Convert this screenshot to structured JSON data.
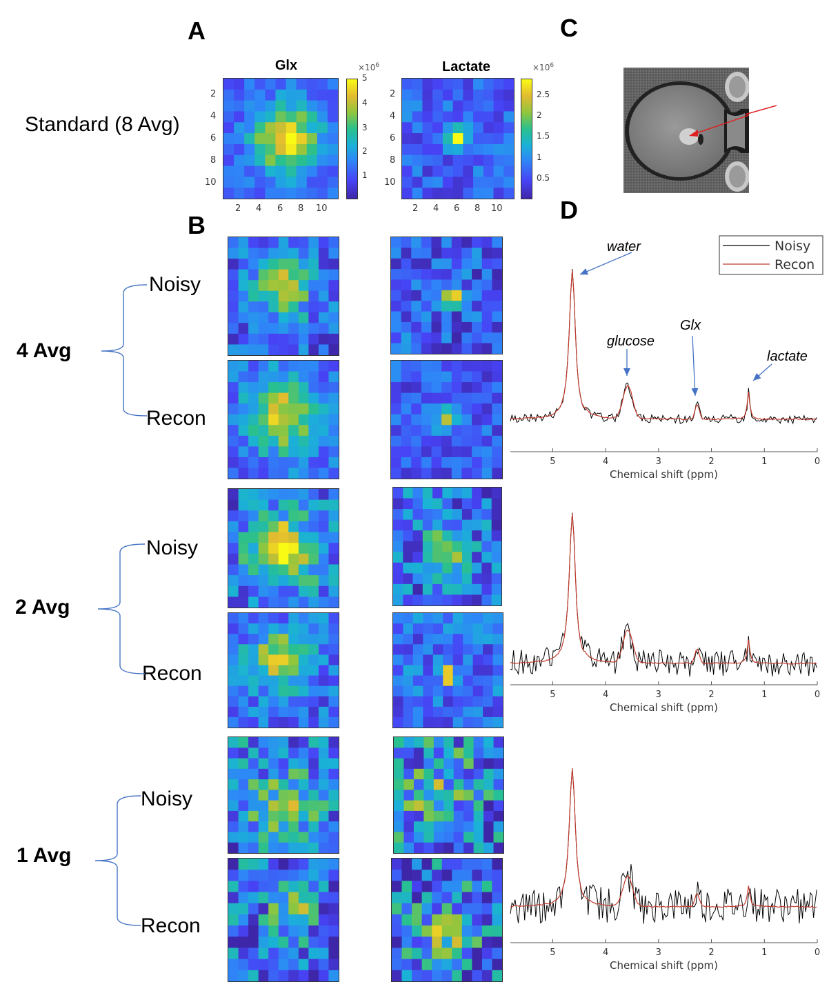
{
  "panels": {
    "A": "A",
    "B": "B",
    "C": "C",
    "D": "D"
  },
  "standard_label": "Standard (8 Avg)",
  "map_titles": {
    "glx": "Glx",
    "lactate": "Lactate"
  },
  "axis_ticks": [
    "2",
    "4",
    "6",
    "8",
    "10"
  ],
  "colorbar_glx": {
    "exponent": "×10",
    "exp_power": "6",
    "ticks": [
      "5",
      "4",
      "3",
      "2",
      "1"
    ]
  },
  "colorbar_lac": {
    "exponent": "×10",
    "exp_power": "6",
    "ticks": [
      "2.5",
      "2",
      "1.5",
      "1",
      "0.5"
    ]
  },
  "groups": [
    {
      "label": "4 Avg",
      "noisy": "Noisy",
      "recon": "Recon"
    },
    {
      "label": "2 Avg",
      "noisy": "Noisy",
      "recon": "Recon"
    },
    {
      "label": "1 Avg",
      "noisy": "Noisy",
      "recon": "Recon"
    }
  ],
  "spectrum": {
    "xlabel": "Chemical shift (ppm)",
    "xticks": [
      "5",
      "4",
      "3",
      "2",
      "1",
      "0"
    ],
    "legend": [
      "Noisy",
      "Recon"
    ],
    "colors": {
      "noisy": "#000000",
      "recon": "#c0392b"
    },
    "annotations": {
      "water": "water",
      "glucose": "glucose",
      "glx": "Glx",
      "lactate": "lactate"
    }
  },
  "chart_data": [
    {
      "type": "heatmap",
      "title": "Glx",
      "panel": "A",
      "xlabel": "",
      "ylabel": "",
      "x_ticks": [
        2,
        4,
        6,
        8,
        10
      ],
      "y_ticks": [
        2,
        4,
        6,
        8,
        10
      ],
      "clim": [
        0,
        5000000
      ],
      "grid_size": [
        11,
        11
      ]
    },
    {
      "type": "heatmap",
      "title": "Lactate",
      "panel": "A",
      "xlabel": "",
      "ylabel": "",
      "x_ticks": [
        2,
        4,
        6,
        8,
        10
      ],
      "y_ticks": [
        2,
        4,
        6,
        8,
        10
      ],
      "clim": [
        0,
        2800000
      ],
      "grid_size": [
        11,
        11
      ]
    },
    {
      "type": "line",
      "panel": "D",
      "title": "4 Avg",
      "xlabel": "Chemical shift (ppm)",
      "xlim": [
        5.8,
        0
      ],
      "series": [
        {
          "name": "Noisy",
          "peaks_ppm": [
            4.65,
            3.6,
            2.3,
            1.3
          ]
        },
        {
          "name": "Recon",
          "peaks_ppm": [
            4.65,
            3.6,
            2.3,
            1.3
          ]
        }
      ]
    },
    {
      "type": "line",
      "panel": "D",
      "title": "2 Avg",
      "xlabel": "Chemical shift (ppm)",
      "xlim": [
        5.8,
        0
      ],
      "series": [
        {
          "name": "Noisy",
          "peaks_ppm": [
            4.65,
            3.65,
            2.3,
            1.3
          ]
        },
        {
          "name": "Recon",
          "peaks_ppm": [
            4.65,
            3.65,
            2.3,
            1.3
          ]
        }
      ]
    },
    {
      "type": "line",
      "panel": "D",
      "title": "1 Avg",
      "xlabel": "Chemical shift (ppm)",
      "xlim": [
        5.8,
        0
      ],
      "series": [
        {
          "name": "Noisy",
          "peaks_ppm": [
            4.62,
            3.6,
            2.3,
            1.3
          ]
        },
        {
          "name": "Recon",
          "peaks_ppm": [
            4.62,
            3.6,
            2.3,
            1.3
          ]
        }
      ]
    }
  ]
}
